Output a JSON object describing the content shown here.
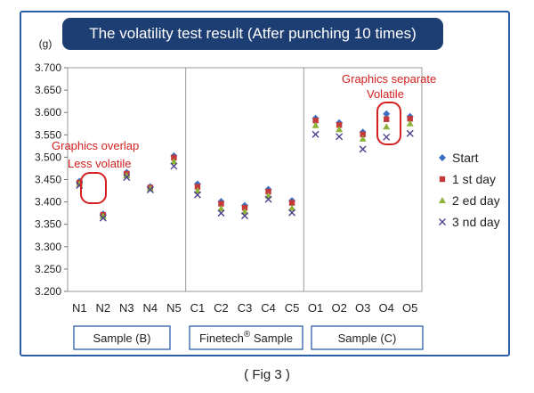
{
  "chart_data": {
    "type": "scatter",
    "title": "The volatility test result (Atfer punching 10 times)",
    "ylabel": "(g)",
    "ylim": [
      3.2,
      3.7
    ],
    "yticks": [
      "3.200",
      "3.250",
      "3.300",
      "3.350",
      "3.400",
      "3.450",
      "3.500",
      "3.550",
      "3.600",
      "3.650",
      "3.700"
    ],
    "categories": [
      "N1",
      "N2",
      "N3",
      "N4",
      "N5",
      "C1",
      "C2",
      "C3",
      "C4",
      "C5",
      "O1",
      "O2",
      "O3",
      "O4",
      "O5"
    ],
    "groups": [
      {
        "label": "Sample (B)",
        "sup": "",
        "suffix": ""
      },
      {
        "label": "Finetech",
        "sup": "®",
        "suffix": " Sample"
      },
      {
        "label": "Sample (C)",
        "sup": "",
        "suffix": ""
      }
    ],
    "series": [
      {
        "name": "Start",
        "color": "#3a6fc4",
        "marker": "diamond",
        "values": [
          3.446,
          3.373,
          3.466,
          3.434,
          3.503,
          3.44,
          3.401,
          3.392,
          3.428,
          3.403,
          3.587,
          3.577,
          3.556,
          3.597,
          3.591
        ]
      },
      {
        "name": "1 st day",
        "color": "#c43a3a",
        "marker": "square",
        "values": [
          3.443,
          3.371,
          3.463,
          3.432,
          3.499,
          3.434,
          3.396,
          3.387,
          3.423,
          3.398,
          3.582,
          3.572,
          3.551,
          3.585,
          3.586
        ]
      },
      {
        "name": "2 ed day",
        "color": "#8db33a",
        "marker": "triangle",
        "values": [
          3.44,
          3.368,
          3.459,
          3.43,
          3.49,
          3.425,
          3.385,
          3.378,
          3.414,
          3.386,
          3.571,
          3.562,
          3.541,
          3.568,
          3.575
        ]
      },
      {
        "name": "3 nd day",
        "color": "#4a3f8c",
        "marker": "x",
        "values": [
          3.437,
          3.364,
          3.455,
          3.427,
          3.48,
          3.416,
          3.375,
          3.369,
          3.406,
          3.376,
          3.551,
          3.546,
          3.518,
          3.545,
          3.553
        ]
      }
    ],
    "annotations": [
      {
        "lines": [
          "Graphics overlap",
          "Less volatile"
        ]
      },
      {
        "lines": [
          "Graphics separate",
          "Volatile"
        ]
      }
    ],
    "legend": "right",
    "grid": false
  },
  "caption": "( Fig 3 )"
}
